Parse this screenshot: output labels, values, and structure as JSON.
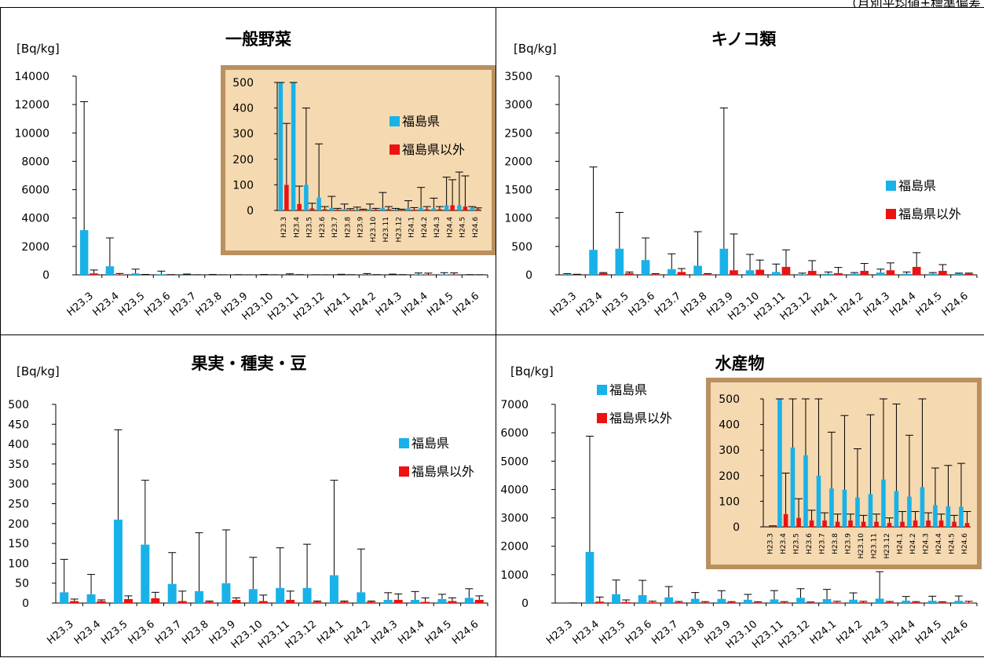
{
  "header_note": "（月別平均値±標準偏差",
  "colors": {
    "fukushima": "#18b2e8",
    "other": "#ee1111",
    "inset_bg": "#f5d9b0",
    "inset_border": "#b9905f"
  },
  "chart_data": [
    {
      "type": "bar",
      "title": "一般野菜",
      "ylabel": "[Bq/kg]",
      "ylim": [
        0,
        14000
      ],
      "yticks": [
        0,
        2000,
        4000,
        6000,
        8000,
        10000,
        12000,
        14000
      ],
      "categories": [
        "H23.3",
        "H23.4",
        "H23.5",
        "H23.6",
        "H23.7",
        "H23.8",
        "H23.9",
        "H23.10",
        "H23.11",
        "H23.12",
        "H24.1",
        "H24.2",
        "H24.3",
        "H24.4",
        "H24.5",
        "H24.6"
      ],
      "series": [
        {
          "name": "福島県",
          "values": [
            3150,
            600,
            100,
            50,
            10,
            5,
            3,
            5,
            10,
            3,
            8,
            10,
            8,
            20,
            20,
            10
          ],
          "errors": [
            9050,
            2000,
            300,
            210,
            45,
            20,
            10,
            20,
            60,
            5,
            30,
            80,
            40,
            110,
            130,
            5
          ]
        },
        {
          "name": "福島県以外",
          "values": [
            100,
            25,
            8,
            5,
            3,
            2,
            2,
            3,
            5,
            2,
            3,
            5,
            5,
            20,
            15,
            5
          ],
          "errors": [
            240,
            70,
            20,
            10,
            5,
            5,
            3,
            5,
            10,
            3,
            8,
            10,
            10,
            100,
            120,
            5
          ]
        }
      ],
      "inset": {
        "ylim": [
          0,
          500
        ],
        "yticks": [
          0,
          100,
          200,
          300,
          400,
          500
        ],
        "legend": [
          "福島県",
          "福島県以外"
        ]
      }
    },
    {
      "type": "bar",
      "title": "キノコ類",
      "ylabel": "[Bq/kg]",
      "ylim": [
        0,
        3500
      ],
      "yticks": [
        0,
        500,
        1000,
        1500,
        2000,
        2500,
        3000,
        3500
      ],
      "categories": [
        "H23.3",
        "H23.4",
        "H23.5",
        "H23.6",
        "H23.7",
        "H23.8",
        "H23.9",
        "H23.10",
        "H23.11",
        "H23.12",
        "H24.1",
        "H24.2",
        "H24.3",
        "H24.4",
        "H24.5",
        "H24.6"
      ],
      "series": [
        {
          "name": "福島県",
          "values": [
            10,
            440,
            460,
            260,
            100,
            160,
            460,
            80,
            50,
            10,
            20,
            20,
            40,
            20,
            20,
            20
          ],
          "errors": [
            10,
            1460,
            640,
            390,
            270,
            600,
            2480,
            280,
            140,
            20,
            30,
            20,
            60,
            30,
            20,
            10
          ]
        },
        {
          "name": "福島県以外",
          "values": [
            5,
            30,
            30,
            10,
            50,
            10,
            80,
            90,
            140,
            70,
            30,
            70,
            80,
            140,
            70,
            20
          ],
          "errors": [
            5,
            10,
            20,
            10,
            60,
            10,
            640,
            170,
            300,
            180,
            100,
            130,
            130,
            250,
            110,
            10
          ]
        }
      ],
      "legend": [
        "福島県",
        "福島県以外"
      ]
    },
    {
      "type": "bar",
      "title": "果実・種実・豆",
      "ylabel": "[Bq/kg]",
      "ylim": [
        0,
        500
      ],
      "yticks": [
        0,
        50,
        100,
        150,
        200,
        250,
        300,
        350,
        400,
        450,
        500
      ],
      "categories": [
        "H23.3",
        "H23.4",
        "H23.5",
        "H23.6",
        "H23.7",
        "H23.8",
        "H23.9",
        "H23.10",
        "H23.11",
        "H23.12",
        "H24.1",
        "H24.2",
        "H24.3",
        "H24.4",
        "H24.5",
        "H24.6"
      ],
      "series": [
        {
          "name": "福島県",
          "values": [
            27,
            22,
            210,
            147,
            48,
            30,
            50,
            35,
            38,
            38,
            70,
            27,
            8,
            8,
            10,
            13
          ],
          "errors": [
            83,
            50,
            226,
            162,
            79,
            147,
            134,
            80,
            101,
            110,
            239,
            109,
            18,
            21,
            12,
            23
          ]
        },
        {
          "name": "福島県以外",
          "values": [
            5,
            5,
            10,
            12,
            5,
            3,
            8,
            5,
            8,
            3,
            3,
            3,
            8,
            3,
            5,
            8
          ],
          "errors": [
            5,
            3,
            8,
            15,
            25,
            2,
            5,
            15,
            22,
            2,
            2,
            2,
            15,
            10,
            8,
            10
          ]
        }
      ],
      "legend": [
        "福島県",
        "福島県以外"
      ]
    },
    {
      "type": "bar",
      "title": "水産物",
      "ylabel": "[Bq/kg]",
      "ylim": [
        0,
        7000
      ],
      "yticks": [
        0,
        1000,
        2000,
        3000,
        4000,
        5000,
        6000,
        7000
      ],
      "categories": [
        "H23.3",
        "H23.4",
        "H23.5",
        "H23.6",
        "H23.7",
        "H23.8",
        "H23.9",
        "H23.10",
        "H23.11",
        "H23.12",
        "H24.1",
        "H24.2",
        "H24.3",
        "H24.4",
        "H24.5",
        "H24.6"
      ],
      "series": [
        {
          "name": "福島県",
          "values": [
            0,
            1800,
            310,
            280,
            200,
            150,
            145,
            115,
            128,
            185,
            140,
            118,
            155,
            85,
            80,
            78
          ],
          "errors": [
            0,
            4080,
            500,
            520,
            380,
            220,
            290,
            190,
            310,
            320,
            340,
            240,
            950,
            145,
            160,
            170
          ]
        },
        {
          "name": "福島県以外",
          "values": [
            2,
            50,
            35,
            25,
            25,
            20,
            25,
            20,
            20,
            15,
            20,
            25,
            25,
            25,
            20,
            15
          ],
          "errors": [
            2,
            160,
            75,
            40,
            30,
            30,
            25,
            25,
            30,
            20,
            40,
            35,
            30,
            25,
            25,
            45
          ]
        }
      ],
      "legend": [
        "福島県",
        "福島県以外"
      ],
      "inset": {
        "ylim": [
          0,
          500
        ],
        "yticks": [
          0,
          100,
          200,
          300,
          400,
          500
        ]
      }
    }
  ]
}
